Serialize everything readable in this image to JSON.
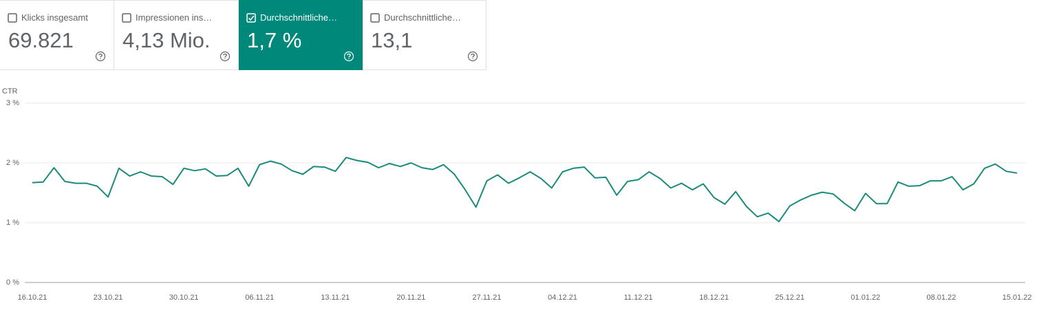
{
  "cards": [
    {
      "label": "Klicks insgesamt",
      "value": "69.821",
      "selected": false
    },
    {
      "label": "Impressionen ins…",
      "value": "4,13 Mio.",
      "selected": false
    },
    {
      "label": "Durchschnittliche…",
      "value": "1,7 %",
      "selected": true
    },
    {
      "label": "Durchschnittliche…",
      "value": "13,1",
      "selected": false
    }
  ],
  "selected_color": "#00897b",
  "chart_data": {
    "type": "line",
    "ylabel": "CTR",
    "color": "#1a8a7a",
    "categories": [
      "16.10.21",
      null,
      null,
      null,
      null,
      null,
      null,
      "23.10.21",
      null,
      null,
      null,
      null,
      null,
      null,
      "30.10.21",
      null,
      null,
      null,
      null,
      null,
      null,
      "06.11.21",
      null,
      null,
      null,
      null,
      null,
      null,
      "13.11.21",
      null,
      null,
      null,
      null,
      null,
      null,
      "20.11.21",
      null,
      null,
      null,
      null,
      null,
      null,
      "27.11.21",
      null,
      null,
      null,
      null,
      null,
      null,
      "04.12.21",
      null,
      null,
      null,
      null,
      null,
      null,
      "11.12.21",
      null,
      null,
      null,
      null,
      null,
      null,
      "18.12.21",
      null,
      null,
      null,
      null,
      null,
      null,
      "25.12.21",
      null,
      null,
      null,
      null,
      null,
      null,
      "01.01.22",
      null,
      null,
      null,
      null,
      null,
      null,
      "08.01.22",
      null,
      null,
      null,
      null,
      null,
      null,
      "15.01.22"
    ],
    "values": [
      1.67,
      1.68,
      1.92,
      1.69,
      1.66,
      1.66,
      1.61,
      1.43,
      1.91,
      1.78,
      1.85,
      1.78,
      1.77,
      1.64,
      1.91,
      1.87,
      1.9,
      1.78,
      1.79,
      1.91,
      1.61,
      1.97,
      2.03,
      1.98,
      1.87,
      1.81,
      1.94,
      1.93,
      1.86,
      2.09,
      2.04,
      2.01,
      1.92,
      1.99,
      1.94,
      2.0,
      1.92,
      1.89,
      1.97,
      1.81,
      1.55,
      1.26,
      1.7,
      1.8,
      1.66,
      1.75,
      1.85,
      1.74,
      1.58,
      1.85,
      1.91,
      1.93,
      1.75,
      1.76,
      1.46,
      1.69,
      1.72,
      1.85,
      1.74,
      1.58,
      1.66,
      1.55,
      1.65,
      1.42,
      1.31,
      1.52,
      1.27,
      1.1,
      1.16,
      1.02,
      1.28,
      1.38,
      1.46,
      1.51,
      1.48,
      1.33,
      1.2,
      1.49,
      1.32,
      1.32,
      1.68,
      1.61,
      1.62,
      1.7,
      1.7,
      1.77,
      1.55,
      1.65,
      1.91,
      1.98,
      1.86,
      1.83
    ],
    "ylim": [
      0,
      3
    ],
    "yticks": [
      {
        "value": 0,
        "label": "0 %"
      },
      {
        "value": 1,
        "label": "1 %"
      },
      {
        "value": 2,
        "label": "2 %"
      },
      {
        "value": 3,
        "label": "3 %"
      }
    ],
    "grid": true
  }
}
